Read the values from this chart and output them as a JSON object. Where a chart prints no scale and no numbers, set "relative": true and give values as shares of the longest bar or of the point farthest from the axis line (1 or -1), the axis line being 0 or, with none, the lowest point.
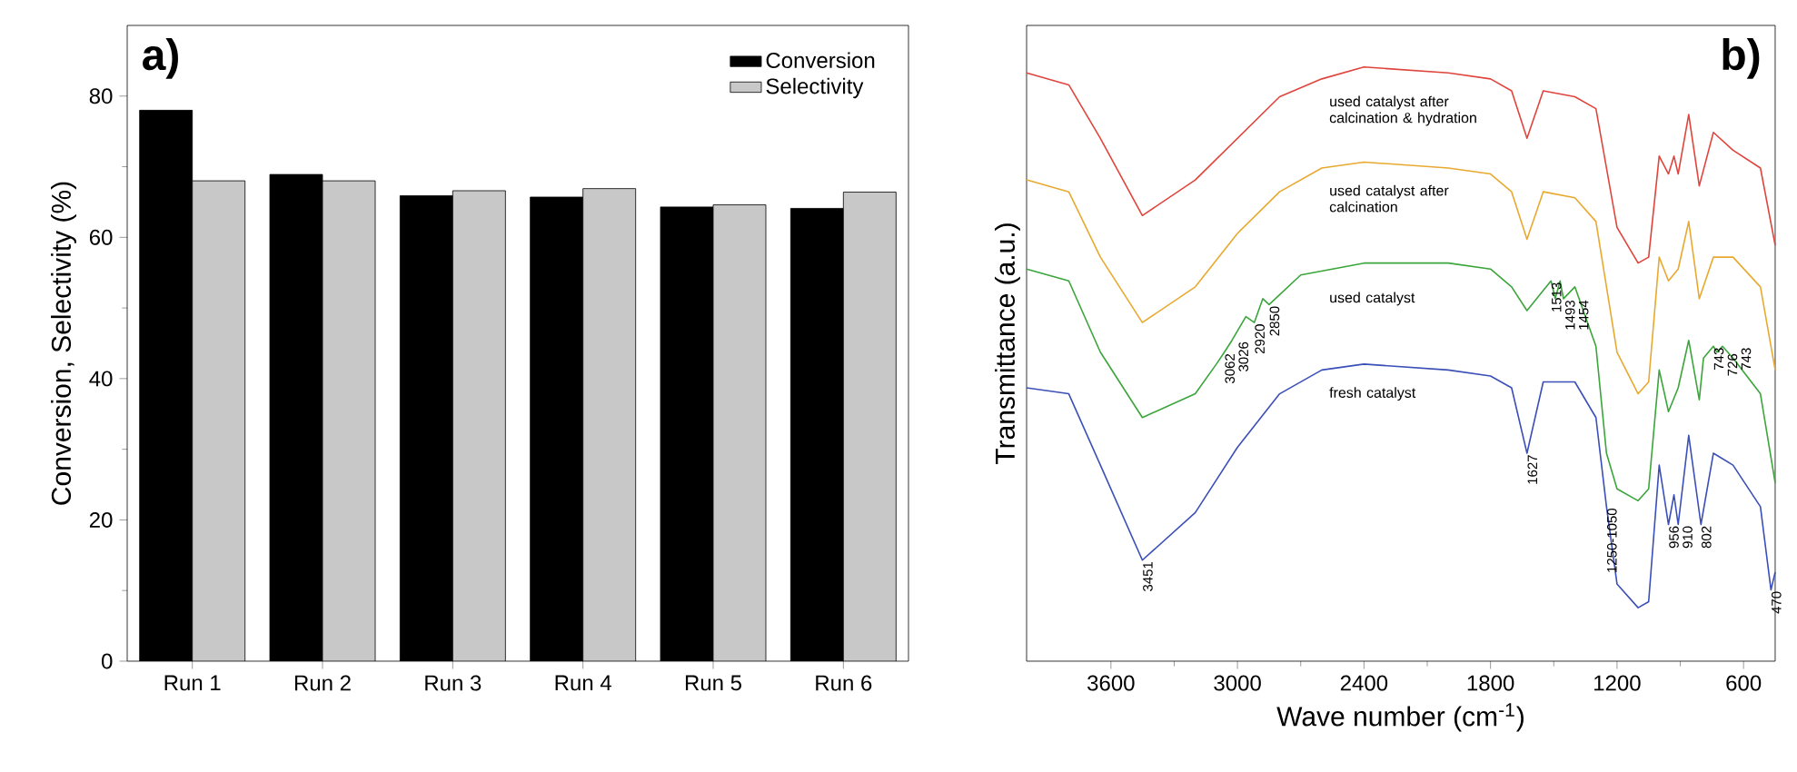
{
  "chart_data": [
    {
      "type": "bar",
      "title": "a)",
      "ylabel": "Conversion, Selectivity (%)",
      "categories": [
        "Run 1",
        "Run 2",
        "Run 3",
        "Run 4",
        "Run 5",
        "Run 6"
      ],
      "series": [
        {
          "name": "Conversion",
          "color": "#000000",
          "values": [
            78.0,
            68.9,
            65.9,
            65.7,
            64.3,
            64.1
          ]
        },
        {
          "name": "Selectivity",
          "color": "#c8c8c8",
          "values": [
            68.0,
            68.0,
            66.6,
            66.9,
            64.6,
            66.4
          ]
        }
      ],
      "ylim": [
        0,
        90
      ],
      "yticks": [
        0,
        20,
        40,
        60,
        80
      ],
      "legend": "top right"
    },
    {
      "type": "line",
      "title": "b)",
      "xlabel": "Wave number (cm$^{-1}$)",
      "ylabel": "Transmittance (a.u.)",
      "relative": true,
      "xlim": [
        4000,
        450
      ],
      "xticks": [
        3600,
        3000,
        2400,
        1800,
        1200,
        600
      ],
      "series": [
        {
          "name": "used catalyst after calcination & hydration",
          "color": "#e0443c",
          "x": [
            4000,
            3800,
            3650,
            3451,
            3200,
            3000,
            2800,
            2600,
            2400,
            2000,
            1800,
            1700,
            1627,
            1550,
            1400,
            1300,
            1200,
            1100,
            1050,
            1000,
            956,
            930,
            910,
            860,
            810,
            743,
            650,
            520,
            450
          ],
          "values": [
            0.99,
            0.97,
            0.88,
            0.75,
            0.81,
            0.88,
            0.95,
            0.98,
            1.0,
            0.99,
            0.98,
            0.96,
            0.88,
            0.96,
            0.95,
            0.93,
            0.73,
            0.67,
            0.68,
            0.85,
            0.82,
            0.85,
            0.82,
            0.92,
            0.8,
            0.89,
            0.86,
            0.83,
            0.7
          ]
        },
        {
          "name": "used catalyst after calcination",
          "color": "#e8a930",
          "x": [
            4000,
            3800,
            3650,
            3451,
            3200,
            3000,
            2800,
            2600,
            2400,
            2000,
            1800,
            1700,
            1627,
            1550,
            1400,
            1300,
            1200,
            1100,
            1050,
            1000,
            956,
            910,
            860,
            810,
            743,
            650,
            520,
            450
          ],
          "values": [
            0.81,
            0.79,
            0.68,
            0.57,
            0.63,
            0.72,
            0.79,
            0.83,
            0.84,
            0.83,
            0.82,
            0.79,
            0.71,
            0.79,
            0.78,
            0.74,
            0.52,
            0.45,
            0.47,
            0.68,
            0.64,
            0.66,
            0.74,
            0.61,
            0.68,
            0.68,
            0.63,
            0.49
          ]
        },
        {
          "name": "used catalyst",
          "color": "#3aa53a",
          "x": [
            4000,
            3800,
            3650,
            3451,
            3200,
            3100,
            3062,
            3026,
            2960,
            2920,
            2880,
            2850,
            2700,
            2400,
            2000,
            1800,
            1700,
            1627,
            1513,
            1493,
            1470,
            1454,
            1400,
            1300,
            1250,
            1200,
            1100,
            1050,
            1000,
            956,
            910,
            860,
            810,
            790,
            743,
            726,
            700,
            650,
            520,
            450
          ],
          "values": [
            0.66,
            0.64,
            0.52,
            0.41,
            0.45,
            0.5,
            0.52,
            0.54,
            0.58,
            0.57,
            0.61,
            0.6,
            0.65,
            0.67,
            0.67,
            0.66,
            0.63,
            0.59,
            0.64,
            0.61,
            0.64,
            0.61,
            0.63,
            0.53,
            0.35,
            0.29,
            0.27,
            0.29,
            0.49,
            0.42,
            0.46,
            0.54,
            0.44,
            0.51,
            0.53,
            0.52,
            0.53,
            0.51,
            0.45,
            0.3
          ]
        },
        {
          "name": "fresh catalyst",
          "color": "#3b4fb8",
          "x": [
            4000,
            3800,
            3650,
            3451,
            3200,
            3000,
            2800,
            2600,
            2400,
            2000,
            1800,
            1700,
            1627,
            1550,
            1400,
            1300,
            1250,
            1200,
            1100,
            1050,
            1000,
            956,
            930,
            910,
            860,
            802,
            743,
            650,
            520,
            470,
            450
          ],
          "values": [
            0.46,
            0.45,
            0.33,
            0.17,
            0.25,
            0.36,
            0.45,
            0.49,
            0.5,
            0.49,
            0.48,
            0.46,
            0.35,
            0.47,
            0.47,
            0.41,
            0.26,
            0.13,
            0.09,
            0.1,
            0.33,
            0.23,
            0.28,
            0.23,
            0.38,
            0.23,
            0.35,
            0.33,
            0.26,
            0.12,
            0.15
          ]
        }
      ],
      "annotations": [
        {
          "text": "3451",
          "x": 3451,
          "y": 0.17
        },
        {
          "text": "1627",
          "x": 1627,
          "y": 0.35
        },
        {
          "text": "1250-1050",
          "x": 1250,
          "y": 0.26
        },
        {
          "text": "956",
          "x": 956,
          "y": 0.23
        },
        {
          "text": "910",
          "x": 910,
          "y": 0.23
        },
        {
          "text": "802",
          "x": 802,
          "y": 0.23
        },
        {
          "text": "470",
          "x": 470,
          "y": 0.12
        },
        {
          "text": "3062",
          "x": 3062,
          "y": 0.52
        },
        {
          "text": "3026",
          "x": 3026,
          "y": 0.54
        },
        {
          "text": "2920",
          "x": 2920,
          "y": 0.57
        },
        {
          "text": "2850",
          "x": 2850,
          "y": 0.6
        },
        {
          "text": "1513",
          "x": 1513,
          "y": 0.64
        },
        {
          "text": "1493",
          "x": 1493,
          "y": 0.61
        },
        {
          "text": "1454",
          "x": 1454,
          "y": 0.61
        },
        {
          "text": "743",
          "x": 743,
          "y": 0.53
        },
        {
          "text": "726",
          "x": 726,
          "y": 0.52
        },
        {
          "text": "743",
          "x": 743,
          "y": 0.53
        }
      ]
    }
  ]
}
